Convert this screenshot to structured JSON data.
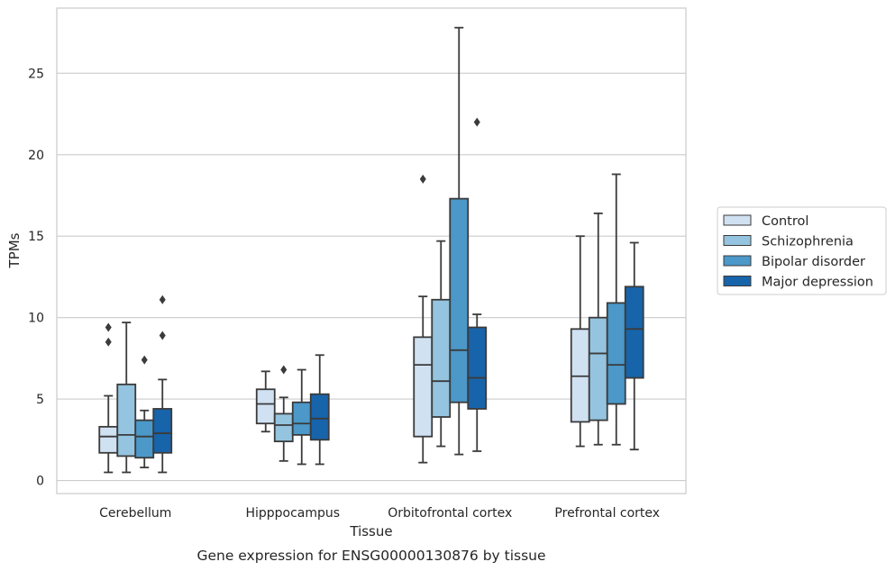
{
  "chart_data": {
    "type": "box",
    "title": "Gene expression for ENSG00000130876 by tissue",
    "xlabel": "Tissue",
    "ylabel": "TPMs",
    "ylim": [
      -0.8,
      29
    ],
    "yticks": [
      0,
      5,
      10,
      15,
      20,
      25
    ],
    "grid": "horizontal",
    "legend_position": "right",
    "categories": [
      "Cerebellum",
      "Hipppocampus",
      "Orbitofrontal cortex",
      "Prefrontal cortex"
    ],
    "series": [
      {
        "name": "Control",
        "color": "#d0e1f2",
        "boxes": [
          {
            "whisker_low": 0.5,
            "q1": 1.7,
            "median": 2.7,
            "q3": 3.3,
            "whisker_high": 5.2,
            "outliers": [
              8.5,
              9.4
            ]
          },
          {
            "whisker_low": 3.0,
            "q1": 3.5,
            "median": 4.7,
            "q3": 5.6,
            "whisker_high": 6.7,
            "outliers": []
          },
          {
            "whisker_low": 1.1,
            "q1": 2.7,
            "median": 7.1,
            "q3": 8.8,
            "whisker_high": 11.3,
            "outliers": [
              18.5
            ]
          },
          {
            "whisker_low": 2.1,
            "q1": 3.6,
            "median": 6.4,
            "q3": 9.3,
            "whisker_high": 15.0,
            "outliers": []
          }
        ]
      },
      {
        "name": "Schizophrenia",
        "color": "#94c4df",
        "boxes": [
          {
            "whisker_low": 0.5,
            "q1": 1.5,
            "median": 2.8,
            "q3": 5.9,
            "whisker_high": 9.7,
            "outliers": []
          },
          {
            "whisker_low": 1.2,
            "q1": 2.4,
            "median": 3.4,
            "q3": 4.1,
            "whisker_high": 5.1,
            "outliers": [
              6.8
            ]
          },
          {
            "whisker_low": 2.1,
            "q1": 3.9,
            "median": 6.1,
            "q3": 11.1,
            "whisker_high": 14.7,
            "outliers": []
          },
          {
            "whisker_low": 2.2,
            "q1": 3.7,
            "median": 7.8,
            "q3": 10.0,
            "whisker_high": 16.4,
            "outliers": []
          }
        ]
      },
      {
        "name": "Bipolar disorder",
        "color": "#4b98c9",
        "boxes": [
          {
            "whisker_low": 0.8,
            "q1": 1.4,
            "median": 2.7,
            "q3": 3.7,
            "whisker_high": 4.3,
            "outliers": [
              7.4
            ]
          },
          {
            "whisker_low": 1.0,
            "q1": 2.8,
            "median": 3.5,
            "q3": 4.8,
            "whisker_high": 6.8,
            "outliers": []
          },
          {
            "whisker_low": 1.6,
            "q1": 4.8,
            "median": 8.0,
            "q3": 17.3,
            "whisker_high": 27.8,
            "outliers": []
          },
          {
            "whisker_low": 2.2,
            "q1": 4.7,
            "median": 7.1,
            "q3": 10.9,
            "whisker_high": 18.8,
            "outliers": []
          }
        ]
      },
      {
        "name": "Major depression",
        "color": "#1764ab",
        "boxes": [
          {
            "whisker_low": 0.5,
            "q1": 1.7,
            "median": 2.9,
            "q3": 4.4,
            "whisker_high": 6.2,
            "outliers": [
              8.9,
              11.1
            ]
          },
          {
            "whisker_low": 1.0,
            "q1": 2.5,
            "median": 3.8,
            "q3": 5.3,
            "whisker_high": 7.7,
            "outliers": []
          },
          {
            "whisker_low": 1.8,
            "q1": 4.4,
            "median": 6.3,
            "q3": 9.4,
            "whisker_high": 10.2,
            "outliers": [
              22.0
            ]
          },
          {
            "whisker_low": 1.9,
            "q1": 6.3,
            "median": 9.3,
            "q3": 11.9,
            "whisker_high": 14.6,
            "outliers": []
          }
        ]
      }
    ]
  }
}
